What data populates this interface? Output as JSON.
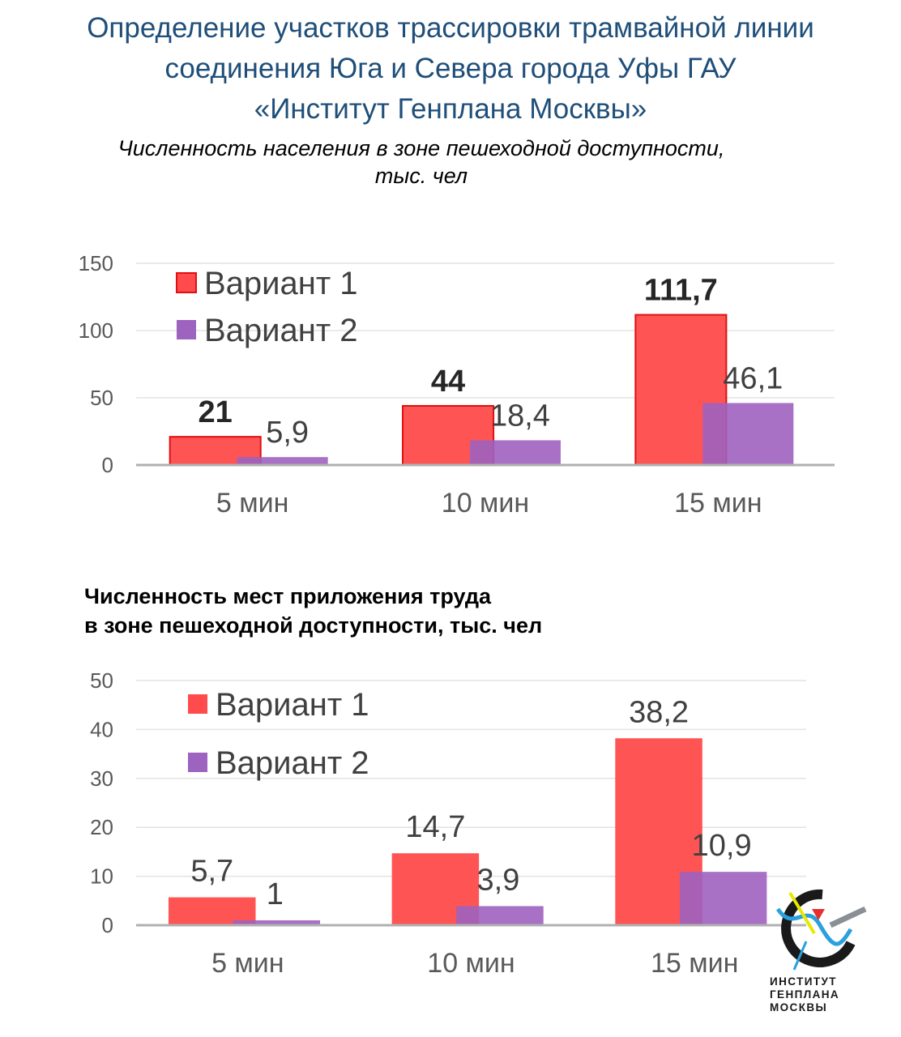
{
  "header": {
    "lines": [
      "Определение участков трассировки трамвайной линии",
      "соединения Юга и Севера города Уфы ГАУ",
      "«Институт Генплана Москвы»"
    ]
  },
  "chart_data": [
    {
      "type": "bar",
      "title_lines": [
        "Численность населения в зоне пешеходной доступности,",
        "тыс. чел"
      ],
      "categories": [
        "5 мин",
        "10 мин",
        "15 мин"
      ],
      "series": [
        {
          "name": "Вариант 1",
          "values": [
            21,
            44,
            111.7
          ],
          "labels": [
            "21",
            "44",
            "111,7"
          ],
          "color": "#ff4b4b"
        },
        {
          "name": "Вариант 2",
          "values": [
            5.9,
            18.4,
            46.1
          ],
          "labels": [
            "5,9",
            "18,4",
            "46,1"
          ],
          "color": "#9e62bf"
        }
      ],
      "yticks": [
        "0",
        "50",
        "100",
        "150"
      ],
      "ylim": [
        0,
        150
      ],
      "grid": true,
      "legend_position": "top-left"
    },
    {
      "type": "bar",
      "title_lines": [
        "Численность мест приложения труда",
        "в зоне пешеходной доступности, тыс. чел"
      ],
      "categories": [
        "5 мин",
        "10 мин",
        "15 мин"
      ],
      "series": [
        {
          "name": "Вариант 1",
          "values": [
            5.7,
            14.7,
            38.2
          ],
          "labels": [
            "5,7",
            "14,7",
            "38,2"
          ],
          "color": "#ff4b4b"
        },
        {
          "name": "Вариант 2",
          "values": [
            1,
            3.9,
            10.9
          ],
          "labels": [
            "1",
            "3,9",
            "10,9"
          ],
          "color": "#9e62bf"
        }
      ],
      "yticks": [
        "0",
        "10",
        "20",
        "30",
        "40",
        "50"
      ],
      "ylim": [
        0,
        50
      ],
      "grid": true,
      "legend_position": "top-left"
    }
  ],
  "logo": {
    "lines": [
      "ИНСТИТУТ",
      "ГЕНПЛАНА",
      "МОСКВЫ"
    ],
    "colors": {
      "accent": "#e8e800",
      "arrow": "#e53030",
      "ring": "#1a1a1a",
      "wave": "#2aa0dc"
    }
  }
}
